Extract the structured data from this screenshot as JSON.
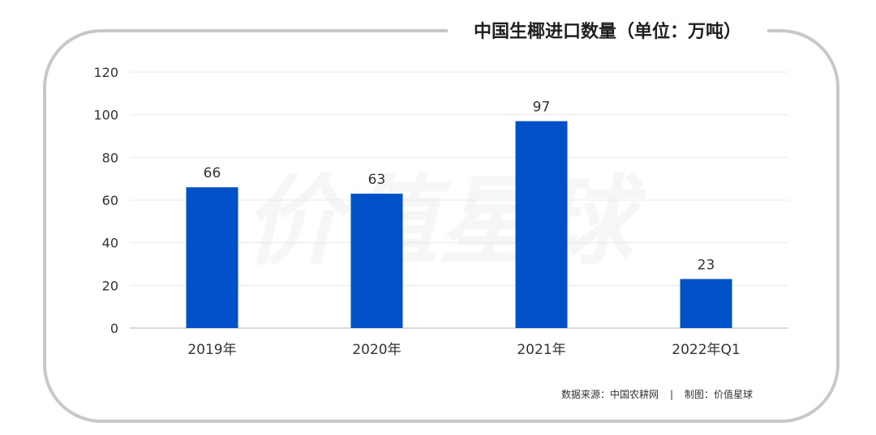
{
  "chart_data": {
    "type": "bar",
    "title": "中国生椰进口数量（单位：万吨）",
    "categories": [
      "2019年",
      "2020年",
      "2021年",
      "2022年Q1"
    ],
    "values": [
      66,
      63,
      97,
      23
    ],
    "ylim": [
      0,
      120
    ],
    "yticks": [
      0,
      20,
      40,
      60,
      80,
      100,
      120
    ],
    "grid": true,
    "bar_color": "#0050c8"
  },
  "footer": {
    "source": "数据来源：中国农耕网",
    "separator": "|",
    "credit": "制图：价值星球"
  },
  "watermark": "价值星球",
  "colors": {
    "frame": "#c8c8c8",
    "grid": "#e8e8e8",
    "axis": "#cfcfcf"
  }
}
